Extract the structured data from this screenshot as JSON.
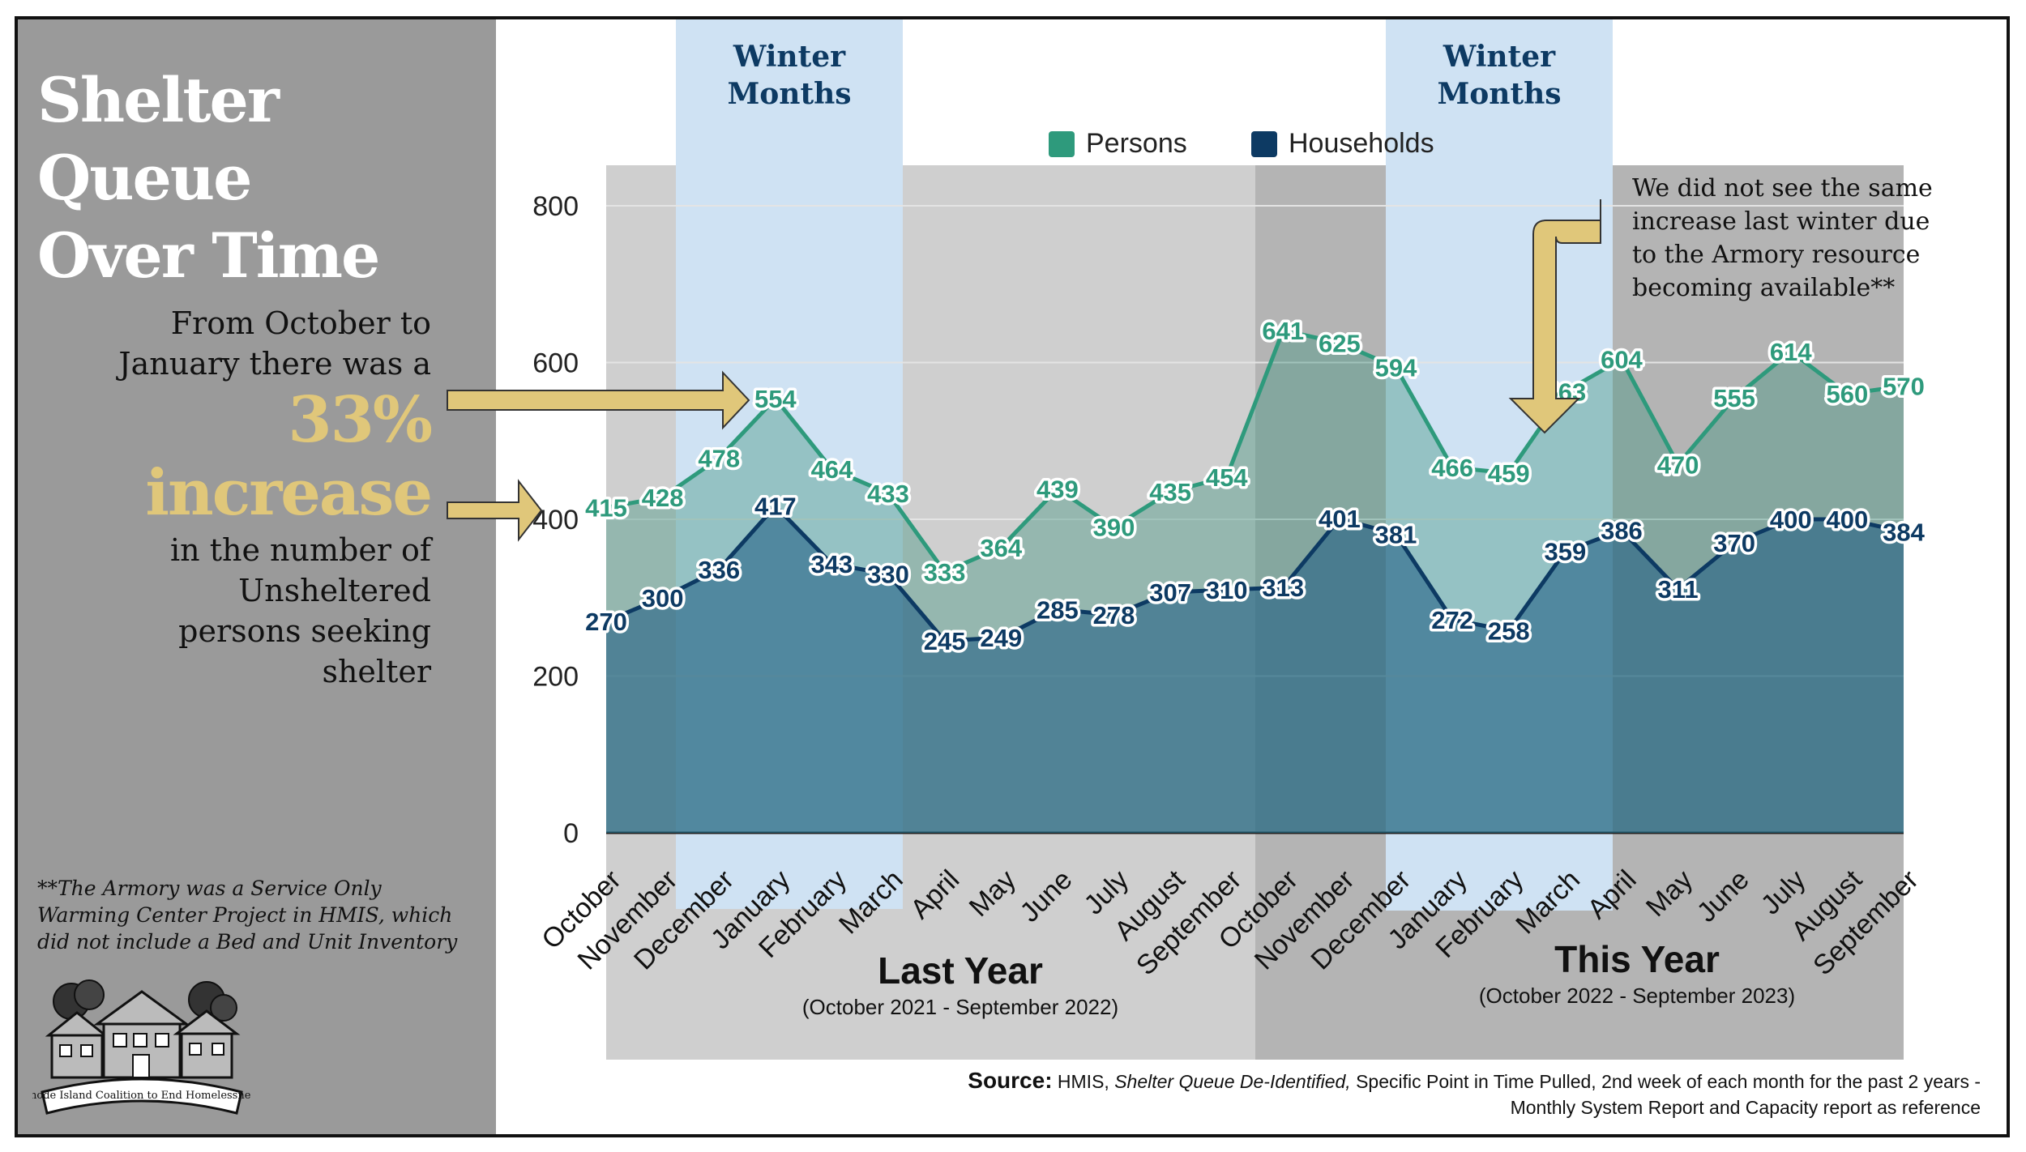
{
  "title_line1": "Shelter Queue",
  "title_line2": "Over Time",
  "callout": {
    "line1": "From October to",
    "line2": "January there was a",
    "highlight1": "33%",
    "highlight2": "increase",
    "line3": "in the number of",
    "line4": "Unsheltered",
    "line5": "persons seeking",
    "line6": "shelter"
  },
  "footnote": "**The Armory was a Service Only Warming Center Project in HMIS, which did not include a Bed and Unit Inventory",
  "logo_text": "Rhode Island Coalition to End Homelessness",
  "annotation": {
    "lines": [
      "We did not see the same",
      "increase last winter due",
      "to the Armory resource",
      "becoming available**"
    ]
  },
  "winter_label": {
    "line1": "Winter",
    "line2": "Months"
  },
  "period_last": {
    "title": "Last Year",
    "range": "(October 2021 - September 2022)"
  },
  "period_this": {
    "title": "This Year",
    "range": "(October 2022 - September 2023)"
  },
  "source": {
    "label": "Source:",
    "text1": " HMIS, ",
    "text_italic": "Shelter Queue De-Identified,",
    "text2": " Specific Point in Time Pulled, 2nd week of each month for the past 2 years -",
    "line2": "Monthly System Report and Capacity report as reference"
  },
  "colors": {
    "persons": "#2e9a7c",
    "households": "#0d3a63",
    "winter": "#cfe2f3",
    "gold": "#e0c77a"
  },
  "chart_data": {
    "type": "area",
    "categories": [
      "October",
      "November",
      "December",
      "January",
      "February",
      "March",
      "April",
      "May",
      "June",
      "July",
      "August",
      "September",
      "October",
      "November",
      "December",
      "January",
      "February",
      "March",
      "April",
      "May",
      "June",
      "July",
      "August",
      "September"
    ],
    "series": [
      {
        "name": "Persons",
        "values": [
          415,
          428,
          478,
          554,
          464,
          433,
          333,
          364,
          439,
          390,
          435,
          454,
          641,
          625,
          594,
          466,
          459,
          563,
          604,
          470,
          555,
          614,
          560,
          570
        ]
      },
      {
        "name": "Households",
        "values": [
          270,
          300,
          336,
          417,
          343,
          330,
          245,
          249,
          285,
          278,
          307,
          310,
          313,
          401,
          381,
          272,
          258,
          359,
          386,
          311,
          370,
          400,
          400,
          384
        ]
      }
    ],
    "yticks": [
      0,
      200,
      400,
      600,
      800
    ],
    "ylim": [
      0,
      800
    ],
    "winter_ranges": [
      [
        "December",
        "February"
      ],
      [
        "December",
        "February"
      ]
    ],
    "legend_position": "top",
    "grid": true
  }
}
